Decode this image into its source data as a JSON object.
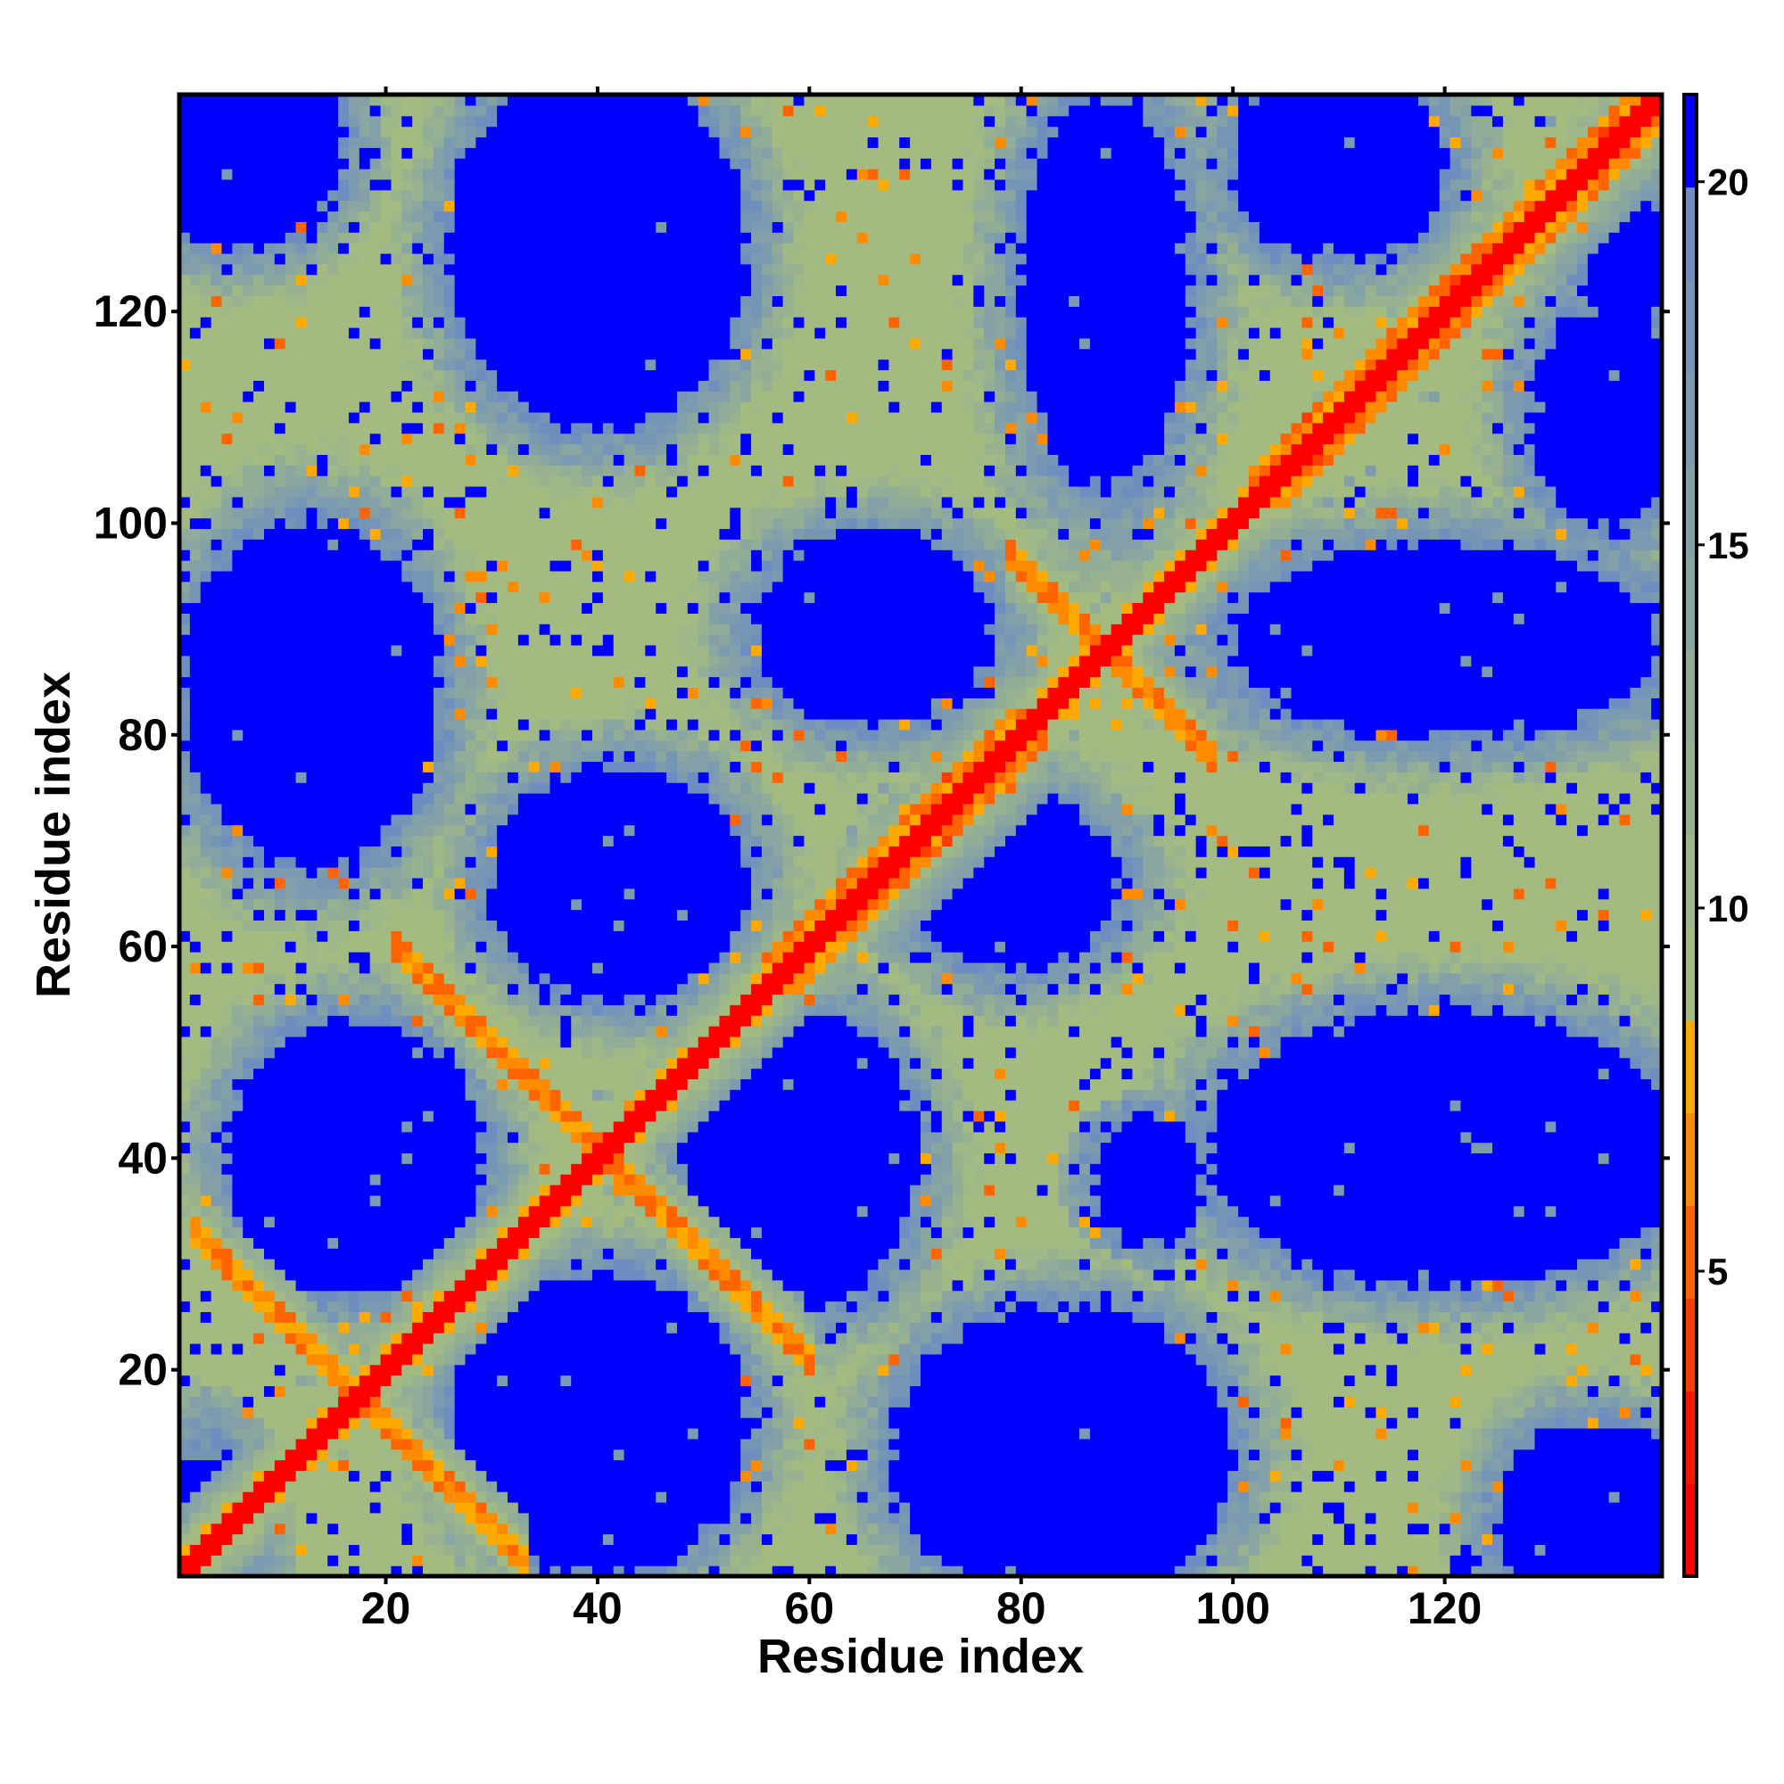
{
  "chart_data": {
    "type": "heatmap",
    "title": "",
    "xlabel": "Residue index",
    "ylabel": "Residue index",
    "n_residues": 140,
    "xlim": [
      0.5,
      140.5
    ],
    "ylim": [
      0.5,
      140.5
    ],
    "xticks": [
      20,
      40,
      60,
      80,
      100,
      120
    ],
    "yticks": [
      20,
      40,
      60,
      80,
      100,
      120
    ],
    "colorbar": {
      "range": [
        0.8,
        21.2
      ],
      "ticks": [
        5,
        10,
        15,
        20
      ],
      "bins": [
        "#ff0000",
        "#ff1400",
        "#ff3c00",
        "#ff6400",
        "#ff8c00",
        "#ffaa00",
        "#a3bb80",
        "#9eb888",
        "#98b290",
        "#91ad98",
        "#8aa6a0",
        "#83a0a8",
        "#7c9ab0",
        "#7594b6",
        "#6d8ebe",
        "#0000ff"
      ]
    },
    "description_model": {
      "far_value": 22,
      "far_regions_center_radius": [
        [
          17,
          40,
          12,
          13
        ],
        [
          40,
          15,
          14,
          14
        ],
        [
          13,
          84,
          12,
          16
        ],
        [
          42,
          66,
          12,
          11
        ],
        [
          66,
          90,
          11,
          9
        ],
        [
          40,
          126,
          14,
          17
        ],
        [
          6,
          136,
          10,
          10
        ],
        [
          88,
          122,
          8,
          18
        ],
        [
          110,
          134,
          10,
          9
        ],
        [
          120,
          89,
          20,
          9
        ],
        [
          79,
          66,
          10,
          8
        ],
        [
          59,
          40,
          11,
          14
        ],
        [
          84,
          12,
          16,
          14
        ],
        [
          120,
          41,
          22,
          13
        ],
        [
          134,
          6,
          9,
          9
        ],
        [
          92,
          38,
          5,
          6
        ],
        [
          3,
          5,
          4,
          7
        ],
        [
          135,
          110,
          7,
          10
        ],
        [
          137,
          125,
          4,
          7
        ]
      ],
      "helix_ranges": [
        [
          56,
          82
        ],
        [
          102,
          140
        ]
      ],
      "antiparallel_pairs_sum_range": [
        [
          35,
          2,
          33
        ],
        [
          81,
          21,
          60
        ],
        [
          176,
          79,
          98
        ]
      ]
    }
  }
}
